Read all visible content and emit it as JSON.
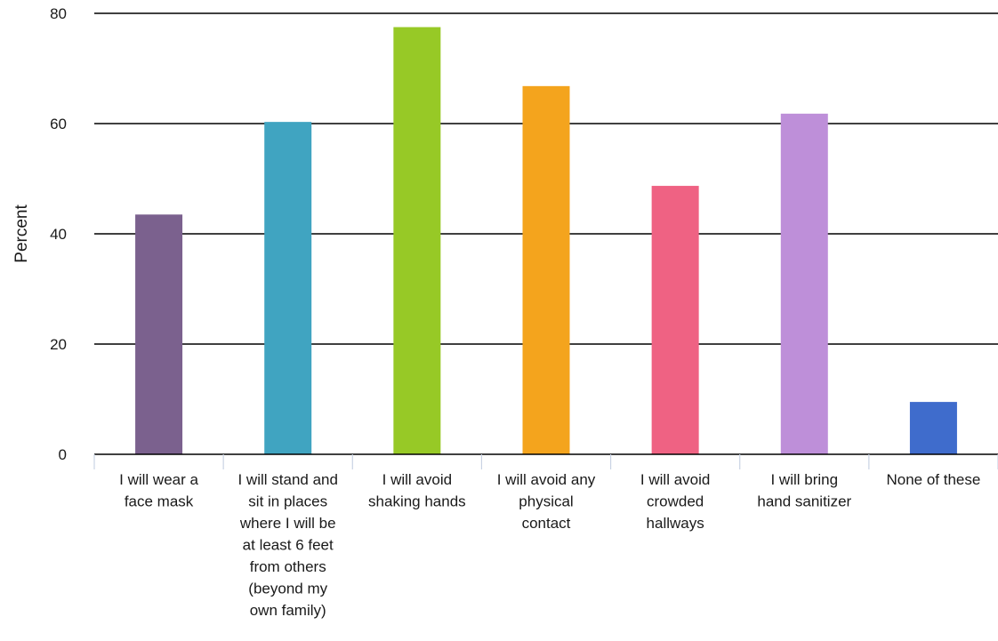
{
  "chart_data": {
    "type": "bar",
    "title": "",
    "xlabel": "",
    "ylabel": "Percent",
    "ylim": [
      0,
      80
    ],
    "yticks": [
      0,
      20,
      40,
      60,
      80
    ],
    "grid": true,
    "legend": "none",
    "categories": [
      "I will wear a face mask",
      "I will stand and sit in places where I will be at least 6 feet from others (beyond my own family)",
      "I will avoid shaking hands",
      "I will avoid any physical contact",
      "I will avoid crowded hallways",
      "I will bring hand sanitizer",
      "None of these"
    ],
    "category_label_lines": [
      [
        "I will wear a",
        "face mask"
      ],
      [
        "I will stand and",
        "sit in places",
        "where I will be",
        "at least 6 feet",
        "from others",
        "(beyond my",
        "own family)"
      ],
      [
        "I will avoid",
        "shaking hands"
      ],
      [
        "I will avoid any",
        "physical",
        "contact"
      ],
      [
        "I will avoid",
        "crowded",
        "hallways"
      ],
      [
        "I will bring",
        "hand sanitizer"
      ],
      [
        "None of these"
      ]
    ],
    "values": [
      43.5,
      60.3,
      77.5,
      66.8,
      48.7,
      61.8,
      9.5
    ],
    "colors": [
      "#7b618e",
      "#40a4c1",
      "#97c926",
      "#f4a41d",
      "#ef6283",
      "#be8fd9",
      "#3f6ccc"
    ]
  }
}
